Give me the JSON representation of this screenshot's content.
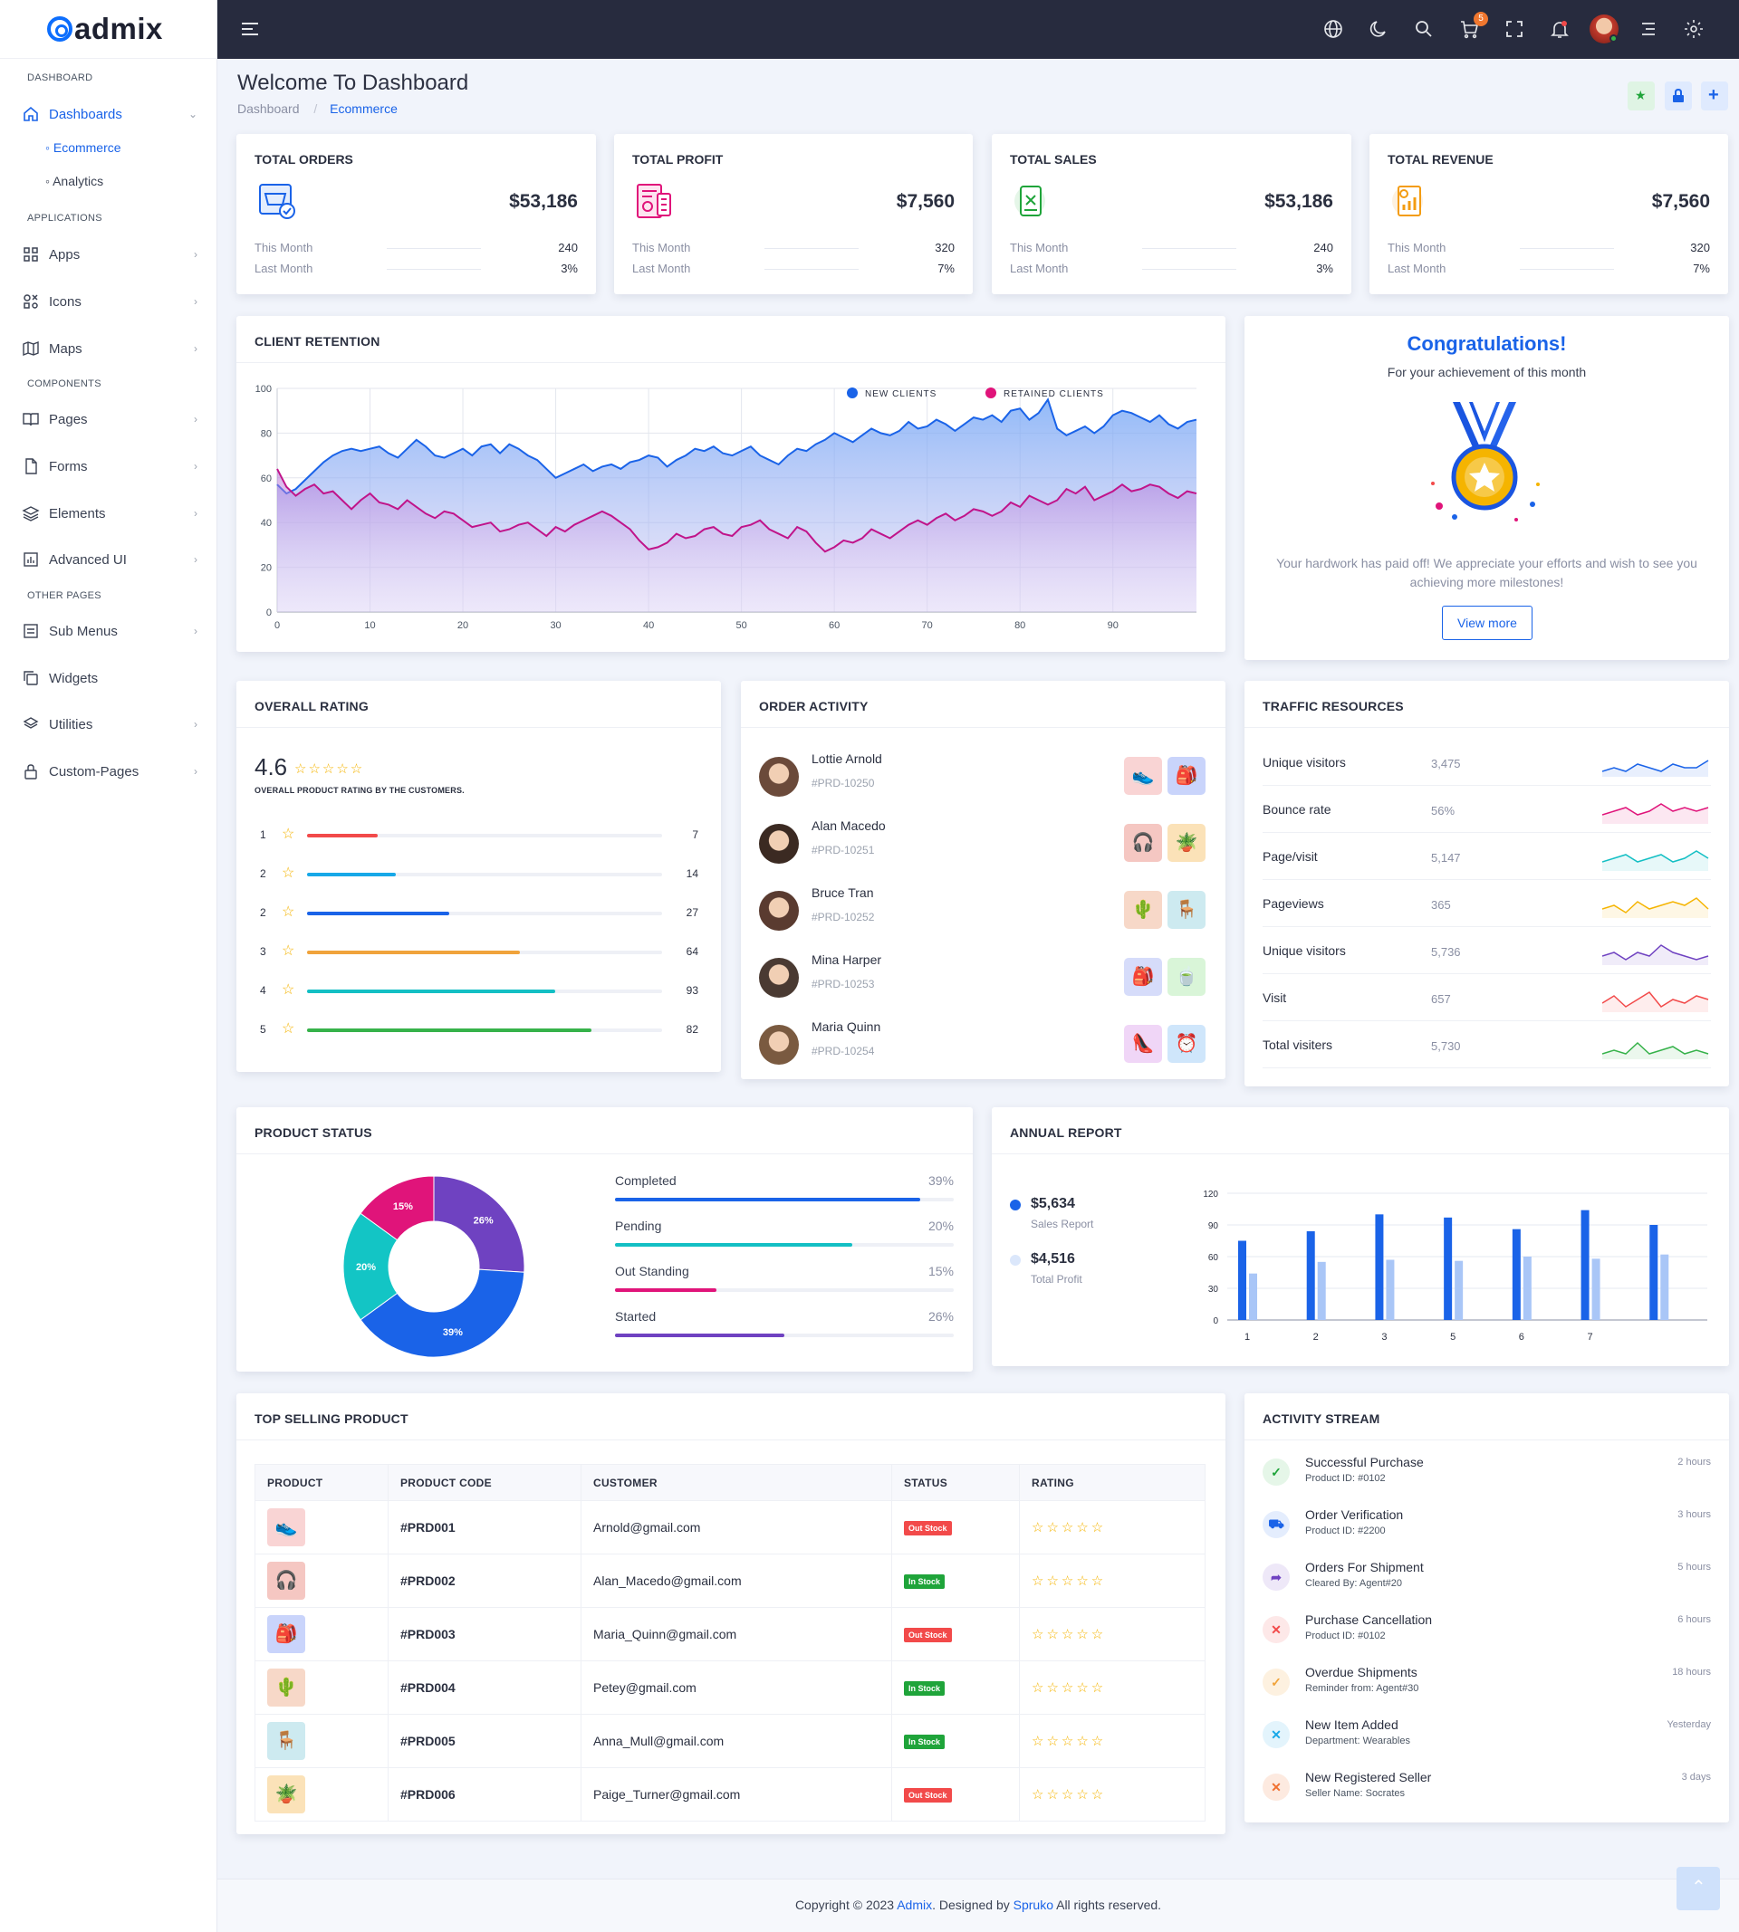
{
  "brand": {
    "name": "admix"
  },
  "sidebar": {
    "sections": [
      "DASHBOARD",
      "APPLICATIONS",
      "COMPONENTS",
      "OTHER PAGES"
    ],
    "items": [
      {
        "label": "Dashboards",
        "icon": "home-icon"
      },
      {
        "label": "Apps",
        "icon": "grid-icon"
      },
      {
        "label": "Icons",
        "icon": "shapes-icon"
      },
      {
        "label": "Maps",
        "icon": "map-icon"
      },
      {
        "label": "Pages",
        "icon": "book-icon"
      },
      {
        "label": "Forms",
        "icon": "file-icon"
      },
      {
        "label": "Elements",
        "icon": "layers-icon"
      },
      {
        "label": "Advanced UI",
        "icon": "chart-box-icon"
      },
      {
        "label": "Sub Menus",
        "icon": "list-box-icon"
      },
      {
        "label": "Widgets",
        "icon": "copy-icon"
      },
      {
        "label": "Utilities",
        "icon": "stack-icon"
      },
      {
        "label": "Custom-Pages",
        "icon": "lock-icon"
      }
    ],
    "subitems": [
      "Ecommerce",
      "Analytics"
    ]
  },
  "topbar": {
    "cart_count": "5",
    "icons": [
      "menu-icon",
      "globe-icon",
      "moon-icon",
      "search-icon",
      "cart-icon",
      "fullscreen-icon",
      "bell-icon",
      "avatar",
      "list-icon",
      "gear-icon"
    ]
  },
  "header": {
    "title": "Welcome To Dashboard",
    "crumb_root": "Dashboard",
    "crumb_current": "Ecommerce",
    "sep": "/"
  },
  "stats": [
    {
      "title": "TOTAL ORDERS",
      "value": "$53,186",
      "this_label": "This Month",
      "this_val": "240",
      "last_label": "Last Month",
      "last_val": "3%",
      "color": "#1a63e8"
    },
    {
      "title": "TOTAL PROFIT",
      "value": "$7,560",
      "this_label": "This Month",
      "this_val": "320",
      "last_label": "Last Month",
      "last_val": "7%",
      "color": "#e0147a"
    },
    {
      "title": "TOTAL SALES",
      "value": "$53,186",
      "this_label": "This Month",
      "this_val": "240",
      "last_label": "Last Month",
      "last_val": "3%",
      "color": "#1fa43a"
    },
    {
      "title": "TOTAL REVENUE",
      "value": "$7,560",
      "this_label": "This Month",
      "this_val": "320",
      "last_label": "Last Month",
      "last_val": "7%",
      "color": "#f39c12"
    }
  ],
  "retention": {
    "title": "CLIENT RETENTION",
    "legend": [
      "NEW CLIENTS",
      "RETAINED CLIENTS"
    ]
  },
  "congrats": {
    "title": "Congratulations!",
    "subtitle": "For your achievement of this month",
    "text": "Your hardwork has paid off! We appreciate your efforts and wish to see you achieving more milestones!",
    "button": "View more"
  },
  "rating": {
    "title": "OVERALL RATING",
    "score": "4.6",
    "caption": "OVERALL PRODUCT RATING BY THE CUSTOMERS.",
    "rows": [
      {
        "label": "1",
        "count": "7",
        "pct": 0.2,
        "color": "#f24a4a"
      },
      {
        "label": "2",
        "count": "14",
        "pct": 0.25,
        "color": "#17a8e8"
      },
      {
        "label": "2",
        "count": "27",
        "pct": 0.4,
        "color": "#1a63e8"
      },
      {
        "label": "3",
        "count": "64",
        "pct": 0.6,
        "color": "#f0a33b"
      },
      {
        "label": "4",
        "count": "93",
        "pct": 0.7,
        "color": "#13bfc4"
      },
      {
        "label": "5",
        "count": "82",
        "pct": 0.8,
        "color": "#36b24a"
      }
    ]
  },
  "orders": {
    "title": "ORDER ACTIVITY",
    "rows": [
      {
        "name": "Lottie Arnold",
        "id": "#PRD-10250"
      },
      {
        "name": "Alan Macedo",
        "id": "#PRD-10251"
      },
      {
        "name": "Bruce Tran",
        "id": "#PRD-10252"
      },
      {
        "name": "Mina Harper",
        "id": "#PRD-10253"
      },
      {
        "name": "Maria Quinn",
        "id": "#PRD-10254"
      }
    ]
  },
  "traffic": {
    "title": "TRAFFIC RESOURCES",
    "rows": [
      {
        "label": "Unique visitors",
        "value": "3,475",
        "color": "#1a63e8"
      },
      {
        "label": "Bounce rate",
        "value": "56%",
        "color": "#e0147a"
      },
      {
        "label": "Page/visit",
        "value": "5,147",
        "color": "#13bfc4"
      },
      {
        "label": "Pageviews",
        "value": "365",
        "color": "#f5b400"
      },
      {
        "label": "Unique visitors",
        "value": "5,736",
        "color": "#6f42c1"
      },
      {
        "label": "Visit",
        "value": "657",
        "color": "#f24a4a"
      },
      {
        "label": "Total visiters",
        "value": "5,730",
        "color": "#36b24a"
      }
    ]
  },
  "product_status": {
    "title": "PRODUCT STATUS",
    "rows": [
      {
        "label": "Completed",
        "value": "39%",
        "pct": 0.9,
        "color": "#1a63e8"
      },
      {
        "label": "Pending",
        "value": "20%",
        "pct": 0.7,
        "color": "#13bfc4"
      },
      {
        "label": "Out Standing",
        "value": "15%",
        "pct": 0.3,
        "color": "#e0147a"
      },
      {
        "label": "Started",
        "value": "26%",
        "pct": 0.5,
        "color": "#6f42c1"
      }
    ]
  },
  "annual": {
    "title": "ANNUAL REPORT",
    "items": [
      {
        "value": "$5,634",
        "label": "Sales Report"
      },
      {
        "value": "$4,516",
        "label": "Total Profit"
      }
    ]
  },
  "top_selling": {
    "title": "TOP SELLING PRODUCT",
    "headers": [
      "PRODUCT",
      "PRODUCT CODE",
      "CUSTOMER",
      "STATUS",
      "RATING"
    ],
    "rows": [
      {
        "code": "#PRD001",
        "customer": "Arnold@gmail.com",
        "status": "Out Stock",
        "stars": "☆☆☆☆☆"
      },
      {
        "code": "#PRD002",
        "customer": "Alan_Macedo@gmail.com",
        "status": "In Stock",
        "stars": "☆☆☆☆☆"
      },
      {
        "code": "#PRD003",
        "customer": "Maria_Quinn@gmail.com",
        "status": "Out Stock",
        "stars": "☆☆☆☆☆"
      },
      {
        "code": "#PRD004",
        "customer": "Petey@gmail.com",
        "status": "In Stock",
        "stars": "☆☆☆☆☆"
      },
      {
        "code": "#PRD005",
        "customer": "Anna_Mull@gmail.com",
        "status": "In Stock",
        "stars": "☆☆☆☆☆"
      },
      {
        "code": "#PRD006",
        "customer": "Paige_Turner@gmail.com",
        "status": "Out Stock",
        "stars": "☆☆☆☆☆"
      }
    ]
  },
  "activity": {
    "title": "ACTIVITY STREAM",
    "rows": [
      {
        "title": "Successful Purchase",
        "sub": "Product ID: #0102",
        "time": "2 hours",
        "glyph": "✓",
        "color": "#1fa43a",
        "bg": "#e5f6e8"
      },
      {
        "title": "Order Verification",
        "sub": "Product ID: #2200",
        "time": "3 hours",
        "glyph": "⛟",
        "color": "#1a63e8",
        "bg": "#e4edfd"
      },
      {
        "title": "Orders For Shipment",
        "sub": "Cleared By: Agent#20",
        "time": "5 hours",
        "glyph": "➦",
        "color": "#6f42c1",
        "bg": "#eee8f8"
      },
      {
        "title": "Purchase Cancellation",
        "sub": "Product ID: #0102",
        "time": "6 hours",
        "glyph": "✕",
        "color": "#f24a4a",
        "bg": "#fde8e8"
      },
      {
        "title": "Overdue Shipments",
        "sub": "Reminder from: Agent#30",
        "time": "18 hours",
        "glyph": "✓",
        "color": "#f0a33b",
        "bg": "#fdf1e0"
      },
      {
        "title": "New Item Added",
        "sub": "Department: Wearables",
        "time": "Yesterday",
        "glyph": "✕",
        "color": "#17a8e8",
        "bg": "#e3f4fc"
      },
      {
        "title": "New Registered Seller",
        "sub": "Seller Name: Socrates",
        "time": "3 days",
        "glyph": "✕",
        "color": "#f07030",
        "bg": "#fdeae0"
      }
    ]
  },
  "footer": {
    "prefix": "Copyright © 2023 ",
    "brand": "Admix",
    "mid": ". Designed by ",
    "designer": "Spruko",
    "suffix": " All rights reserved."
  },
  "chart_data": [
    {
      "type": "area",
      "title": "CLIENT RETENTION",
      "ylim": [
        0,
        100
      ],
      "xlim": [
        0,
        99
      ],
      "x_ticks": [
        0,
        10,
        20,
        30,
        40,
        50,
        60,
        70,
        80,
        90
      ],
      "y_ticks": [
        0,
        20,
        40,
        60,
        80,
        100
      ],
      "series": [
        {
          "name": "NEW CLIENTS",
          "color": "#1a63e8",
          "values": [
            57,
            53,
            55,
            59,
            63,
            67,
            70,
            72,
            73,
            72,
            73,
            74,
            71,
            69,
            73,
            77,
            74,
            70,
            69,
            71,
            73,
            70,
            74,
            75,
            71,
            75,
            73,
            70,
            68,
            64,
            60,
            62,
            64,
            66,
            63,
            65,
            66,
            64,
            67,
            68,
            70,
            69,
            65,
            68,
            70,
            73,
            72,
            74,
            71,
            70,
            72,
            74,
            70,
            68,
            66,
            70,
            73,
            72,
            75,
            77,
            80,
            78,
            76,
            79,
            82,
            80,
            79,
            81,
            85,
            82,
            83,
            86,
            84,
            81,
            84,
            87,
            86,
            88,
            85,
            90,
            91,
            86,
            89,
            95,
            82,
            79,
            81,
            83,
            80,
            83,
            88,
            90,
            89,
            87,
            85,
            88,
            84,
            82,
            85,
            86
          ]
        },
        {
          "name": "RETAINED CLIENTS",
          "color": "#c0148a",
          "values": [
            64,
            56,
            52,
            55,
            57,
            53,
            54,
            50,
            46,
            50,
            53,
            49,
            48,
            46,
            50,
            47,
            44,
            42,
            45,
            44,
            41,
            38,
            39,
            40,
            36,
            37,
            39,
            40,
            37,
            34,
            38,
            36,
            39,
            41,
            43,
            45,
            43,
            40,
            37,
            32,
            28,
            29,
            31,
            35,
            33,
            34,
            37,
            38,
            35,
            34,
            38,
            39,
            41,
            37,
            35,
            33,
            38,
            36,
            31,
            27,
            29,
            32,
            31,
            33,
            37,
            35,
            33,
            36,
            39,
            41,
            39,
            42,
            44,
            41,
            43,
            46,
            45,
            43,
            45,
            49,
            47,
            52,
            50,
            48,
            50,
            55,
            53,
            56,
            50,
            52,
            54,
            57,
            54,
            55,
            57,
            56,
            53,
            51,
            54,
            53
          ]
        }
      ]
    },
    {
      "type": "pie",
      "title": "PRODUCT STATUS",
      "series": [
        {
          "name": "Started",
          "value": 26,
          "color": "#6f42c1"
        },
        {
          "name": "Completed",
          "value": 39,
          "color": "#1a63e8"
        },
        {
          "name": "Pending",
          "value": 20,
          "color": "#13c5c5"
        },
        {
          "name": "Out Standing",
          "value": 15,
          "color": "#e0147a"
        }
      ]
    },
    {
      "type": "bar",
      "title": "ANNUAL REPORT",
      "categories": [
        "1",
        "2",
        "3",
        "5",
        "6",
        "7",
        ""
      ],
      "ylim": [
        0,
        120
      ],
      "y_ticks": [
        0,
        30,
        60,
        90,
        120
      ],
      "series": [
        {
          "name": "Sales Report",
          "color": "#1a63e8",
          "values": [
            75,
            84,
            100,
            97,
            86,
            104,
            90
          ]
        },
        {
          "name": "Total Profit",
          "color": "#a9c6f7",
          "values": [
            44,
            55,
            57,
            56,
            60,
            58,
            62
          ]
        }
      ]
    }
  ]
}
